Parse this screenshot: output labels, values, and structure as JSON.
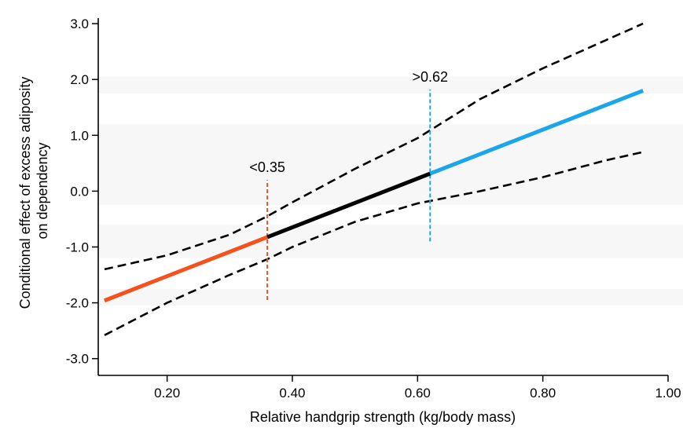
{
  "chart_data": {
    "type": "line",
    "xlabel": "Relative handgrip strength (kg/body mass)",
    "ylabel_lines": [
      "Conditional effect of excess adiposity",
      "on dependency"
    ],
    "xlim": [
      0.09,
      1.0
    ],
    "ylim": [
      -3.3,
      3.1
    ],
    "x_ticks": [
      0.2,
      0.4,
      0.6,
      0.8,
      1.0
    ],
    "x_tick_labels": [
      "0.20",
      "0.40",
      "0.60",
      "0.80",
      "1.00"
    ],
    "y_ticks": [
      3.0,
      2.0,
      1.0,
      0.0,
      -1.0,
      -2.0,
      -3.0
    ],
    "y_tick_labels": [
      "3.0",
      "2.0",
      "1.0",
      "0.0",
      "-1.0",
      "-2.0",
      "-3.0"
    ],
    "background_bands_y": [
      [
        1.75,
        2.05
      ],
      [
        -0.25,
        1.2
      ],
      [
        -1.2,
        -0.6
      ],
      [
        -2.05,
        -1.75
      ]
    ],
    "effect_line": {
      "x_start": 0.1,
      "y_start": -1.96,
      "x_end": 0.96,
      "y_end": 1.8
    },
    "segments": [
      {
        "x_from": 0.1,
        "x_to": 0.36,
        "color": "#f4511e"
      },
      {
        "x_from": 0.36,
        "x_to": 0.62,
        "color": "#000000"
      },
      {
        "x_from": 0.62,
        "x_to": 0.96,
        "color": "#1ba6ea"
      }
    ],
    "upper_ci": [
      {
        "x": 0.1,
        "y": -1.4
      },
      {
        "x": 0.2,
        "y": -1.15
      },
      {
        "x": 0.3,
        "y": -0.78
      },
      {
        "x": 0.36,
        "y": -0.45
      },
      {
        "x": 0.4,
        "y": -0.2
      },
      {
        "x": 0.5,
        "y": 0.4
      },
      {
        "x": 0.6,
        "y": 0.95
      },
      {
        "x": 0.7,
        "y": 1.65
      },
      {
        "x": 0.8,
        "y": 2.2
      },
      {
        "x": 0.9,
        "y": 2.7
      },
      {
        "x": 0.96,
        "y": 3.0
      }
    ],
    "lower_ci": [
      {
        "x": 0.1,
        "y": -2.58
      },
      {
        "x": 0.2,
        "y": -2.0
      },
      {
        "x": 0.3,
        "y": -1.5
      },
      {
        "x": 0.36,
        "y": -1.22
      },
      {
        "x": 0.4,
        "y": -1.0
      },
      {
        "x": 0.5,
        "y": -0.55
      },
      {
        "x": 0.6,
        "y": -0.22
      },
      {
        "x": 0.7,
        "y": 0.0
      },
      {
        "x": 0.8,
        "y": 0.25
      },
      {
        "x": 0.9,
        "y": 0.55
      },
      {
        "x": 0.96,
        "y": 0.7
      }
    ],
    "thresholds": [
      {
        "x": 0.36,
        "label": "<0.35",
        "color": "#f4511e",
        "y_from": -1.95,
        "y_to": 0.2
      },
      {
        "x": 0.62,
        "label": ">0.62",
        "color": "#1ba6ea",
        "y_from": -0.9,
        "y_to": 1.82
      }
    ]
  }
}
